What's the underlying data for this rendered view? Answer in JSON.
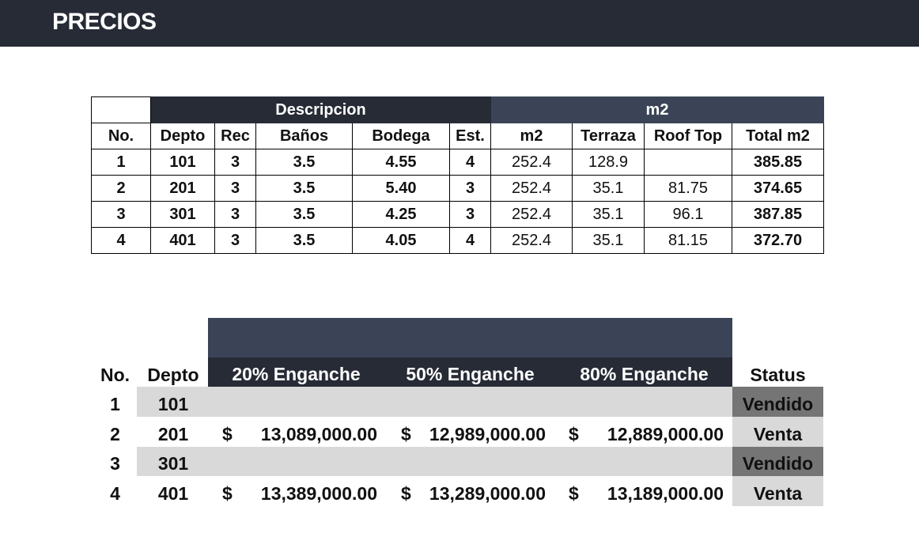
{
  "header": {
    "title": "PRECIOS"
  },
  "table1": {
    "group_headers": {
      "descripcion": "Descripcion",
      "m2": "m2"
    },
    "columns": [
      "No.",
      "Depto",
      "Rec",
      "Baños",
      "Bodega",
      "Est.",
      "m2",
      "Terraza",
      "Roof Top",
      "Total m2"
    ],
    "rows": [
      [
        "1",
        "101",
        "3",
        "3.5",
        "4.55",
        "4",
        "252.4",
        "128.9",
        "",
        "385.85"
      ],
      [
        "2",
        "201",
        "3",
        "3.5",
        "5.40",
        "3",
        "252.4",
        "35.1",
        "81.75",
        "374.65"
      ],
      [
        "3",
        "301",
        "3",
        "3.5",
        "4.25",
        "3",
        "252.4",
        "35.1",
        "96.1",
        "387.85"
      ],
      [
        "4",
        "401",
        "3",
        "3.5",
        "4.05",
        "4",
        "252.4",
        "35.1",
        "81.15",
        "372.70"
      ]
    ]
  },
  "table2": {
    "columns": [
      "No.",
      "Depto",
      "20% Enganche",
      "50% Enganche",
      "80% Enganche",
      "Status"
    ],
    "currency_symbol": "$",
    "rows": [
      {
        "no": "1",
        "depto": "101",
        "p20": "",
        "p50": "",
        "p80": "",
        "status": "Vendido"
      },
      {
        "no": "2",
        "depto": "201",
        "p20": "13,089,000.00",
        "p50": "12,989,000.00",
        "p80": "12,889,000.00",
        "status": "Venta"
      },
      {
        "no": "3",
        "depto": "301",
        "p20": "",
        "p50": "",
        "p80": "",
        "status": "Vendido"
      },
      {
        "no": "4",
        "depto": "401",
        "p20": "13,389,000.00",
        "p50": "13,289,000.00",
        "p80": "13,189,000.00",
        "status": "Venta"
      }
    ]
  },
  "colors": {
    "header_dark": "#262b36",
    "header_slate": "#3b4457",
    "row_shade": "#d9d9d9",
    "sold": "#757575"
  }
}
